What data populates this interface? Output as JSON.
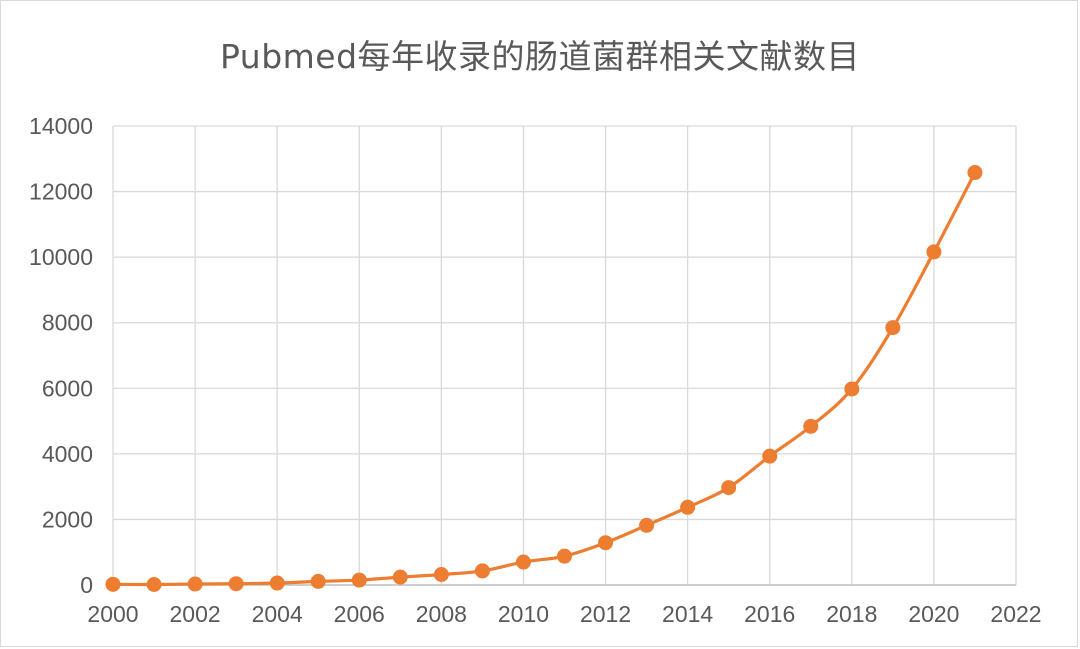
{
  "chart_data": {
    "type": "scatter",
    "title": "Pubmed每年收录的肠道菌群相关文献数目",
    "xlabel": "",
    "ylabel": "",
    "xlim": [
      2000,
      2022
    ],
    "ylim": [
      0,
      14000
    ],
    "x_ticks": [
      "2000",
      "2002",
      "2004",
      "2006",
      "2008",
      "2010",
      "2012",
      "2014",
      "2016",
      "2018",
      "2020",
      "2022"
    ],
    "y_ticks": [
      "0",
      "2000",
      "4000",
      "6000",
      "8000",
      "10000",
      "12000",
      "14000"
    ],
    "grid": true,
    "legend": "none",
    "series": [
      {
        "color": "#ed7d31",
        "marker": "circle",
        "line": "smooth",
        "points": [
          {
            "x": 2000,
            "y": 20
          },
          {
            "x": 2001,
            "y": 15
          },
          {
            "x": 2002,
            "y": 30
          },
          {
            "x": 2003,
            "y": 40
          },
          {
            "x": 2004,
            "y": 60
          },
          {
            "x": 2005,
            "y": 110
          },
          {
            "x": 2006,
            "y": 150
          },
          {
            "x": 2007,
            "y": 240
          },
          {
            "x": 2008,
            "y": 320
          },
          {
            "x": 2009,
            "y": 430
          },
          {
            "x": 2010,
            "y": 700
          },
          {
            "x": 2011,
            "y": 880
          },
          {
            "x": 2012,
            "y": 1290
          },
          {
            "x": 2013,
            "y": 1820
          },
          {
            "x": 2014,
            "y": 2370
          },
          {
            "x": 2015,
            "y": 2970
          },
          {
            "x": 2016,
            "y": 3930
          },
          {
            "x": 2017,
            "y": 4840
          },
          {
            "x": 2018,
            "y": 5980
          },
          {
            "x": 2019,
            "y": 7850
          },
          {
            "x": 2020,
            "y": 10160
          },
          {
            "x": 2021,
            "y": 12580
          }
        ]
      }
    ]
  }
}
